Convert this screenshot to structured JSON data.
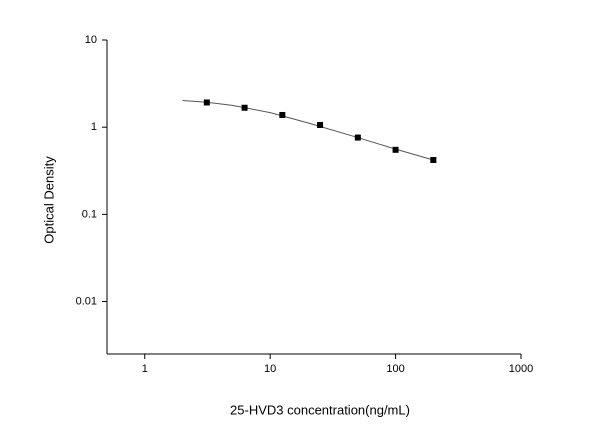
{
  "chart_data": {
    "type": "scatter",
    "x_label": "25-HVD3 concentration(ng/mL)",
    "y_label": "Optical Density",
    "x": [
      3.125,
      6.25,
      12.5,
      25,
      50,
      100,
      200
    ],
    "values": [
      1.92,
      1.67,
      1.38,
      1.06,
      0.76,
      0.55,
      0.42
    ],
    "color": "#000000",
    "fit": {
      "x": [
        2,
        3.125,
        5,
        10,
        20,
        50,
        100,
        200
      ],
      "values": [
        2.02,
        1.93,
        1.78,
        1.47,
        1.12,
        0.76,
        0.56,
        0.42
      ],
      "color": "#555555"
    },
    "xscale": "log",
    "yscale": "log",
    "xlim": [
      0.5,
      1000
    ],
    "ylim": [
      0.0025,
      10
    ],
    "xticks": [
      1,
      10,
      100,
      1000
    ],
    "yticks": [
      0.01,
      0.1,
      1,
      10
    ]
  }
}
